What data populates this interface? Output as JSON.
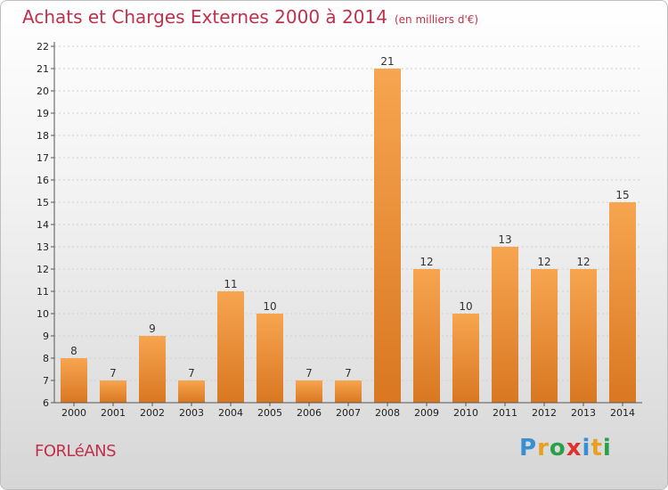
{
  "title": "Achats et Charges Externes 2000 à 2014",
  "subtitle": "(en milliers d'€)",
  "location": "FORLéANS",
  "logo": {
    "letters": [
      "P",
      "r",
      "o",
      "x",
      "i",
      "t",
      "i"
    ],
    "colors": [
      "#3a8fd0",
      "#e8a020",
      "#2aa04a",
      "#e03030",
      "#3a8fd0",
      "#e8a020",
      "#2aa04a"
    ]
  },
  "colors": {
    "bar_top": "#f7a550",
    "bar_bottom": "#d97722",
    "title": "#c0304a"
  },
  "chart_data": {
    "type": "bar",
    "categories": [
      "2000",
      "2001",
      "2002",
      "2003",
      "2004",
      "2005",
      "2006",
      "2007",
      "2008",
      "2009",
      "2010",
      "2011",
      "2012",
      "2013",
      "2014"
    ],
    "values": [
      8,
      7,
      9,
      7,
      11,
      10,
      7,
      7,
      21,
      12,
      10,
      13,
      12,
      12,
      15
    ],
    "y_ticks": [
      6,
      7,
      8,
      9,
      10,
      11,
      12,
      13,
      14,
      15,
      16,
      17,
      18,
      19,
      20,
      21,
      22
    ],
    "ylim": [
      6,
      22
    ],
    "grid": true,
    "data_labels": true
  }
}
